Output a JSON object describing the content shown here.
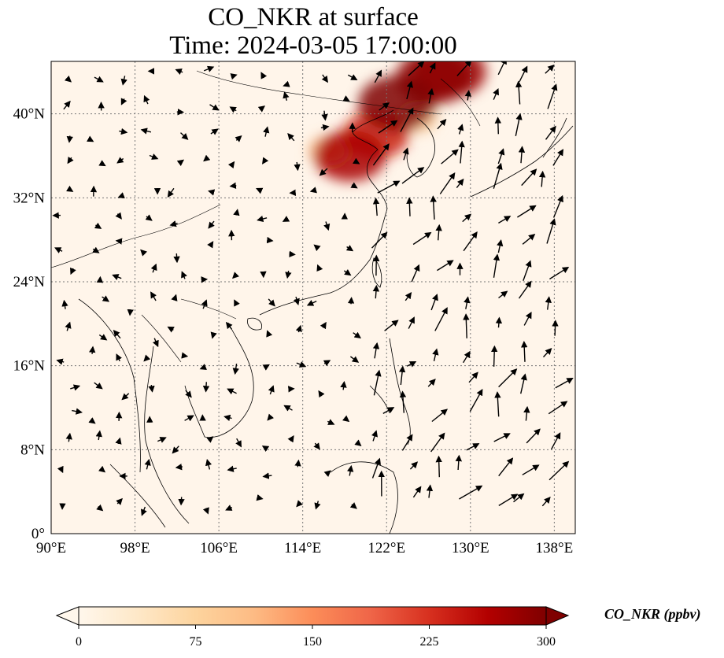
{
  "title": {
    "line1": "CO_NKR at surface",
    "line2": "Time: 2024-03-05 17:00:00"
  },
  "map": {
    "variable": "CO_NKR",
    "level": "surface",
    "lon_range": [
      90,
      140
    ],
    "lat_range": [
      0,
      45
    ],
    "gridlines": "dotted",
    "lon_ticks": [
      "90°E",
      "98°E",
      "106°E",
      "114°E",
      "122°E",
      "130°E",
      "138°E"
    ],
    "lat_ticks": [
      "0°",
      "8°N",
      "16°N",
      "24°N",
      "32°N",
      "40°N"
    ],
    "colormap": "OrRd",
    "plume_regions": [
      {
        "lon": 118.5,
        "lat": 36.0,
        "value": 270
      },
      {
        "lon": 121.0,
        "lat": 38.0,
        "value": 240
      },
      {
        "lon": 123.0,
        "lat": 41.0,
        "value": 300
      },
      {
        "lon": 126.5,
        "lat": 43.5,
        "value": 290
      },
      {
        "lon": 128.0,
        "lat": 44.0,
        "value": 280
      },
      {
        "lon": 116.5,
        "lat": 36.5,
        "value": 110
      },
      {
        "lon": 125.0,
        "lat": 39.5,
        "value": 90
      }
    ]
  },
  "colorbar": {
    "label": "CO_NKR (ppbv)",
    "ticks": [
      "0",
      "75",
      "150",
      "225",
      "300"
    ],
    "range": [
      0,
      300
    ],
    "colors": [
      "#fff7ec",
      "#fee8c8",
      "#fdd49e",
      "#fdbb84",
      "#fc8d59",
      "#ef6548",
      "#d7301f",
      "#b30000",
      "#7f0000"
    ]
  }
}
